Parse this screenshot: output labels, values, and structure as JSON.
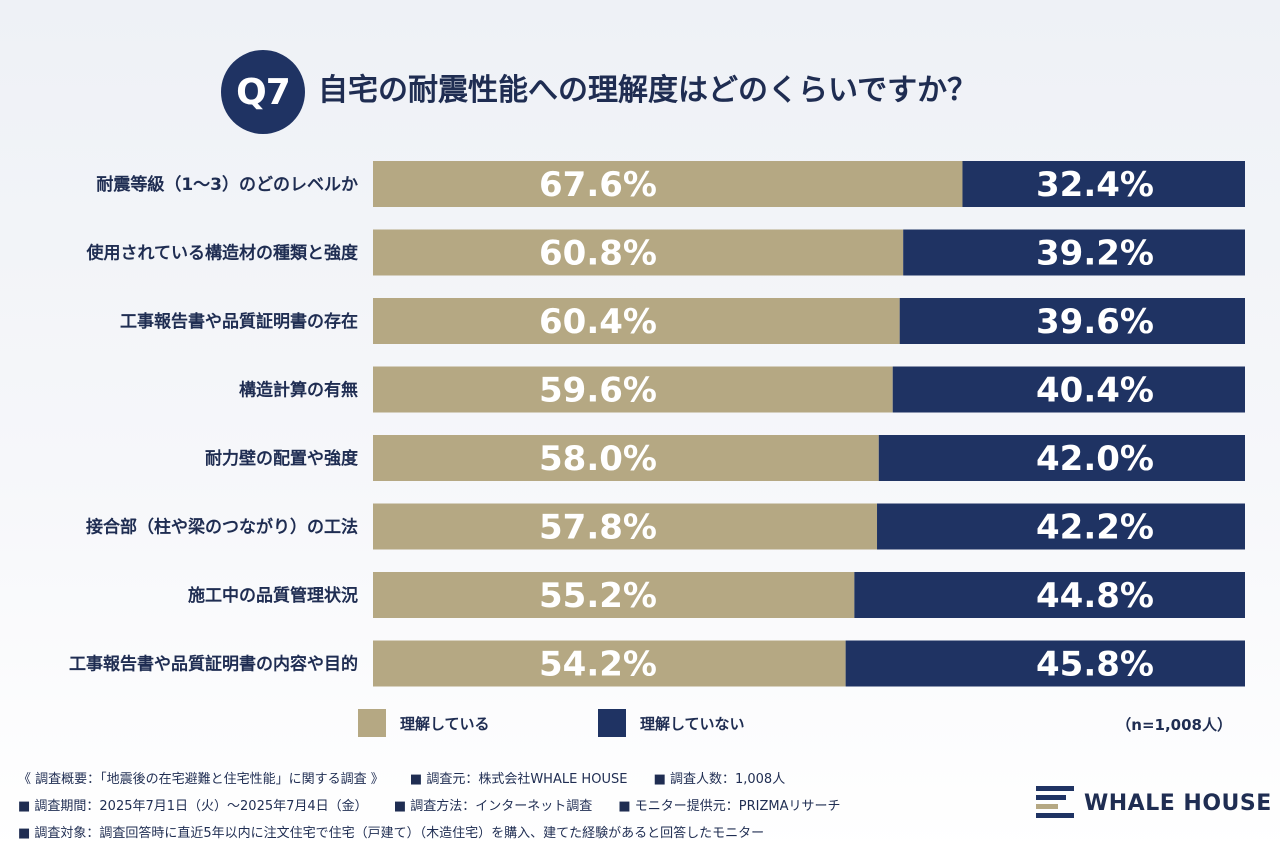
{
  "header": {
    "badge": "Q7",
    "title": "自宅の耐震性能への理解度はどのくらいですか？"
  },
  "colors": {
    "understand": "#b5a883",
    "not_understand": "#1f3363",
    "text": "#1f2d52"
  },
  "chart_data": {
    "type": "bar",
    "orientation": "horizontal-stacked-100",
    "categories": [
      "耐震等級（1～3）のどのレベルか",
      "使用されている構造材の種類と強度",
      "工事報告書や品質証明書の存在",
      "構造計算の有無",
      "耐力壁の配置や強度",
      "接合部（柱や梁のつながり）の工法",
      "施工中の品質管理状況",
      "工事報告書や品質証明書の内容や目的"
    ],
    "series": [
      {
        "name": "理解している",
        "values": [
          67.6,
          60.8,
          60.4,
          59.6,
          58.0,
          57.8,
          55.2,
          54.2
        ],
        "labels": [
          "67.6%",
          "60.8%",
          "60.4%",
          "59.6%",
          "58.0%",
          "57.8%",
          "55.2%",
          "54.2%"
        ]
      },
      {
        "name": "理解していない",
        "values": [
          32.4,
          39.2,
          39.6,
          40.4,
          42.0,
          42.2,
          44.8,
          45.8
        ],
        "labels": [
          "32.4%",
          "39.2%",
          "39.6%",
          "40.4%",
          "42.0%",
          "42.2%",
          "44.8%",
          "45.8%"
        ]
      }
    ],
    "xlim": [
      0,
      100
    ],
    "grid": false,
    "legend": "bottom",
    "note": "（n=1,008人）"
  },
  "legend": {
    "understand": "理解している",
    "not_understand": "理解していない"
  },
  "footer": {
    "line1": [
      "《 調査概要：「地震後の在宅避難と住宅性能」に関する調査 》",
      "■ 調査元：株式会社WHALE HOUSE",
      "■ 調査人数：1,008人"
    ],
    "line2": [
      "■ 調査期間：2025年7月1日（火）～2025年7月4日（金）",
      "■ 調査方法：インターネット調査",
      "■ モニター提供元：PRIZMAリサーチ"
    ],
    "line3": [
      "■ 調査対象：調査回答時に直近5年以内に注文住宅で住宅（戸建て）（木造住宅）を購入、建てた経験があると回答したモニター"
    ]
  },
  "logo": {
    "text": "WHALE HOUSE",
    "icon": "whale-house-logo-icon"
  }
}
